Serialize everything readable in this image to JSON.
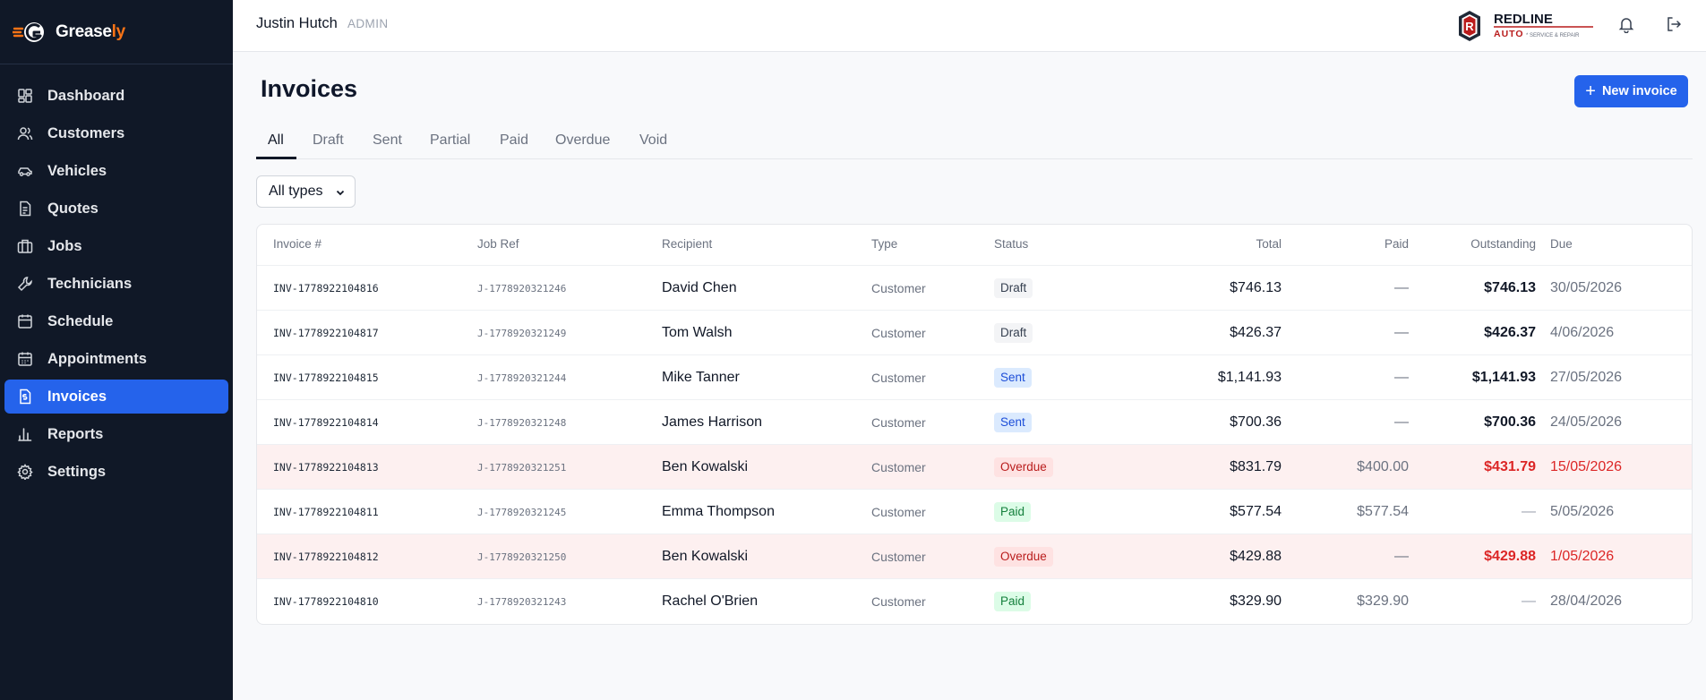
{
  "brand": {
    "name_part1": "Grease",
    "name_part2": "ly",
    "accent": "#f97316"
  },
  "nav": [
    {
      "label": "Dashboard",
      "icon": "grid-icon",
      "active": false
    },
    {
      "label": "Customers",
      "icon": "users-icon",
      "active": false
    },
    {
      "label": "Vehicles",
      "icon": "car-icon",
      "active": false
    },
    {
      "label": "Quotes",
      "icon": "document-icon",
      "active": false
    },
    {
      "label": "Jobs",
      "icon": "briefcase-icon",
      "active": false
    },
    {
      "label": "Technicians",
      "icon": "wrench-icon",
      "active": false
    },
    {
      "label": "Schedule",
      "icon": "calendar-icon",
      "active": false
    },
    {
      "label": "Appointments",
      "icon": "calendar-check-icon",
      "active": false
    },
    {
      "label": "Invoices",
      "icon": "invoice-icon",
      "active": true
    },
    {
      "label": "Reports",
      "icon": "bar-chart-icon",
      "active": false
    },
    {
      "label": "Settings",
      "icon": "gear-icon",
      "active": false
    }
  ],
  "topbar": {
    "user_name": "Justin Hutch",
    "user_role": "ADMIN",
    "company_logo": {
      "badge": "R",
      "line1": "REDLINE",
      "line2": "AUTO",
      "tagline": "* SERVICE & REPAIR"
    }
  },
  "page": {
    "title": "Invoices",
    "new_button_label": "New invoice"
  },
  "tabs": [
    "All",
    "Draft",
    "Sent",
    "Partial",
    "Paid",
    "Overdue",
    "Void"
  ],
  "active_tab": "All",
  "filter": {
    "selected": "All types"
  },
  "table": {
    "headers": {
      "invoice": "Invoice #",
      "job": "Job Ref",
      "recipient": "Recipient",
      "type": "Type",
      "status": "Status",
      "total": "Total",
      "paid": "Paid",
      "outstanding": "Outstanding",
      "due": "Due"
    },
    "rows": [
      {
        "invoice": "INV-1778922104816",
        "job": "J-1778920321246",
        "recipient": "David Chen",
        "type": "Customer",
        "status": "Draft",
        "total": "$746.13",
        "paid": "—",
        "outstanding": "$746.13",
        "due": "30/05/2026"
      },
      {
        "invoice": "INV-1778922104817",
        "job": "J-1778920321249",
        "recipient": "Tom Walsh",
        "type": "Customer",
        "status": "Draft",
        "total": "$426.37",
        "paid": "—",
        "outstanding": "$426.37",
        "due": "4/06/2026"
      },
      {
        "invoice": "INV-1778922104815",
        "job": "J-1778920321244",
        "recipient": "Mike Tanner",
        "type": "Customer",
        "status": "Sent",
        "total": "$1,141.93",
        "paid": "—",
        "outstanding": "$1,141.93",
        "due": "27/05/2026"
      },
      {
        "invoice": "INV-1778922104814",
        "job": "J-1778920321248",
        "recipient": "James Harrison",
        "type": "Customer",
        "status": "Sent",
        "total": "$700.36",
        "paid": "—",
        "outstanding": "$700.36",
        "due": "24/05/2026"
      },
      {
        "invoice": "INV-1778922104813",
        "job": "J-1778920321251",
        "recipient": "Ben Kowalski",
        "type": "Customer",
        "status": "Overdue",
        "total": "$831.79",
        "paid": "$400.00",
        "outstanding": "$431.79",
        "due": "15/05/2026"
      },
      {
        "invoice": "INV-1778922104811",
        "job": "J-1778920321245",
        "recipient": "Emma Thompson",
        "type": "Customer",
        "status": "Paid",
        "total": "$577.54",
        "paid": "$577.54",
        "outstanding": "—",
        "due": "5/05/2026"
      },
      {
        "invoice": "INV-1778922104812",
        "job": "J-1778920321250",
        "recipient": "Ben Kowalski",
        "type": "Customer",
        "status": "Overdue",
        "total": "$429.88",
        "paid": "—",
        "outstanding": "$429.88",
        "due": "1/05/2026"
      },
      {
        "invoice": "INV-1778922104810",
        "job": "J-1778920321243",
        "recipient": "Rachel O'Brien",
        "type": "Customer",
        "status": "Paid",
        "total": "$329.90",
        "paid": "$329.90",
        "outstanding": "—",
        "due": "28/04/2026"
      }
    ]
  },
  "colors": {
    "sidebar_bg": "#101827",
    "primary": "#2563eb",
    "overdue_row": "#fdf0f0",
    "danger": "#dc2626"
  }
}
